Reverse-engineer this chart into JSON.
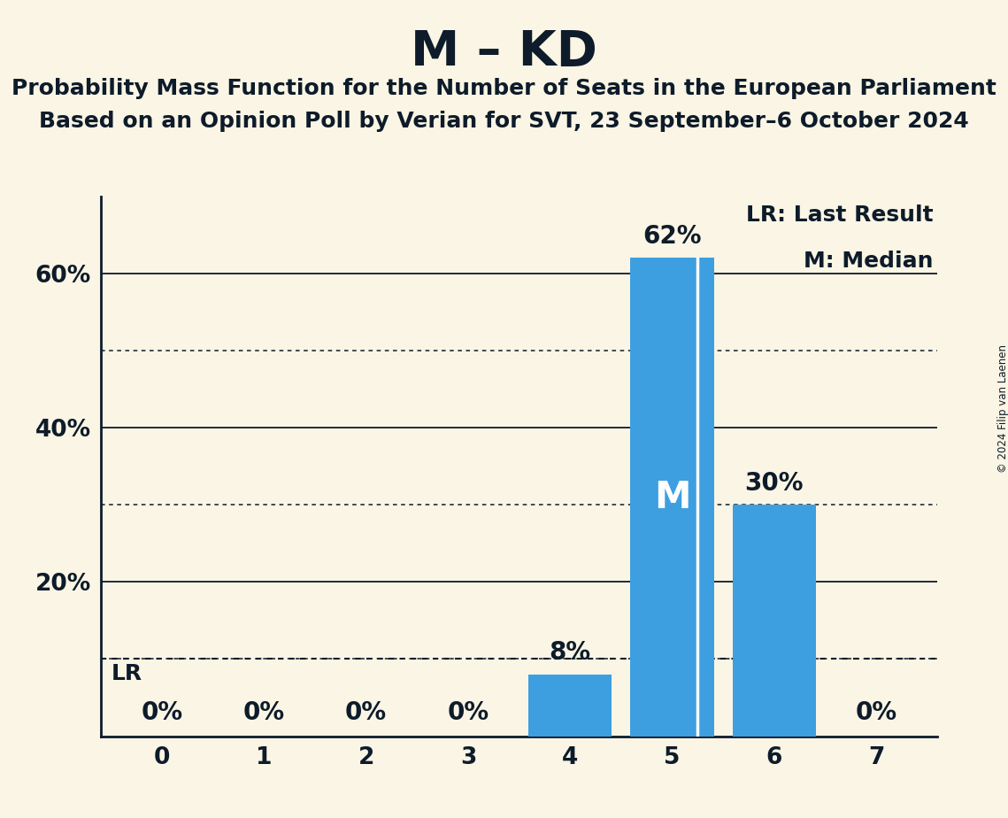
{
  "title": "M – KD",
  "subtitle1": "Probability Mass Function for the Number of Seats in the European Parliament",
  "subtitle2": "Based on an Opinion Poll by Verian for SVT, 23 September–6 October 2024",
  "copyright": "© 2024 Filip van Laenen",
  "categories": [
    0,
    1,
    2,
    3,
    4,
    5,
    6,
    7
  ],
  "values": [
    0,
    0,
    0,
    0,
    8,
    62,
    30,
    0
  ],
  "bar_color": "#3d9fe0",
  "bar_labels": [
    "0%",
    "0%",
    "0%",
    "0%",
    "8%",
    "62%",
    "30%",
    "0%"
  ],
  "median_bar": 5,
  "median_label": "M",
  "lr_value": 10,
  "lr_label": "LR",
  "legend_lr": "LR: Last Result",
  "legend_m": "M: Median",
  "solid_gridlines": [
    20,
    40,
    60
  ],
  "dotted_gridlines": [
    10,
    30,
    50
  ],
  "ylim": [
    0,
    70
  ],
  "background_color": "#faf5e4",
  "text_color": "#0d1b2a",
  "title_fontsize": 40,
  "subtitle_fontsize": 18,
  "tick_fontsize": 19,
  "legend_fontsize": 18,
  "bar_label_fontsize": 20,
  "median_label_fontsize": 30,
  "lr_label_fontsize": 18,
  "bar_width": 0.82
}
